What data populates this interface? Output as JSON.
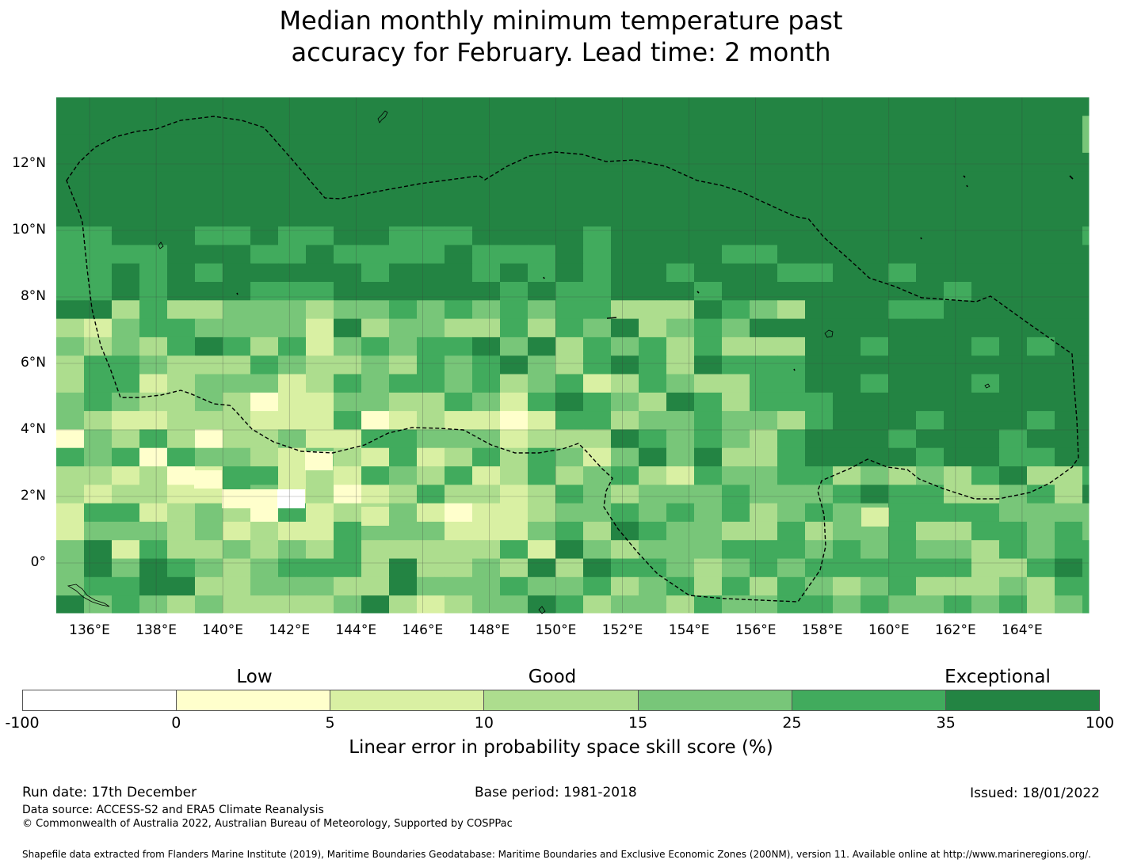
{
  "title_line1": "Median monthly minimum temperature past",
  "title_line2": "accuracy for February. Lead time: 2 month",
  "map": {
    "lon_range": [
      135,
      166
    ],
    "lat_range": [
      -1.5,
      14
    ],
    "x_ticks": [
      136,
      138,
      140,
      142,
      144,
      146,
      148,
      150,
      152,
      154,
      156,
      158,
      160,
      162,
      164
    ],
    "x_tick_labels": [
      "136°E",
      "138°E",
      "140°E",
      "142°E",
      "144°E",
      "146°E",
      "148°E",
      "150°E",
      "152°E",
      "154°E",
      "156°E",
      "158°E",
      "160°E",
      "162°E",
      "164°E"
    ],
    "y_ticks": [
      12,
      10,
      8,
      6,
      4,
      2,
      0
    ],
    "y_tick_labels": [
      "12°N",
      "10°N",
      "8°N",
      "6°N",
      "4°N",
      "2°N",
      "0°"
    ],
    "boundary_line_style": "dashed"
  },
  "colorbar": {
    "categories": [
      "Low",
      "Good",
      "Exceptional"
    ],
    "tick_labels": [
      "-100",
      "0",
      "5",
      "10",
      "15",
      "25",
      "35",
      "100"
    ],
    "colors": [
      "#ffffff",
      "#ffffcc",
      "#d9f0a3",
      "#addd8e",
      "#78c679",
      "#41ab5d",
      "#238443"
    ],
    "label": "Linear error in probability space skill score (%)"
  },
  "footer": {
    "run_date": "Run date: 17th December",
    "base_period": "Base period: 1981-2018",
    "issued": "Issued: 18/01/2022",
    "data_source": "Data source: ACCESS-S2 and ERA5 Climate Reanalysis",
    "copyright": "© Commonwealth of Australia 2022, Australian Bureau of Meteorology, Supported by COSPPac",
    "shapefile": "Shapefile data extracted from Flanders Marine Institute (2019), Maritime Boundaries Geodatabase: Maritime Boundaries and Exclusive Economic Zones (200NM), version 11. Available online at http://www.marineregions.org/."
  }
}
